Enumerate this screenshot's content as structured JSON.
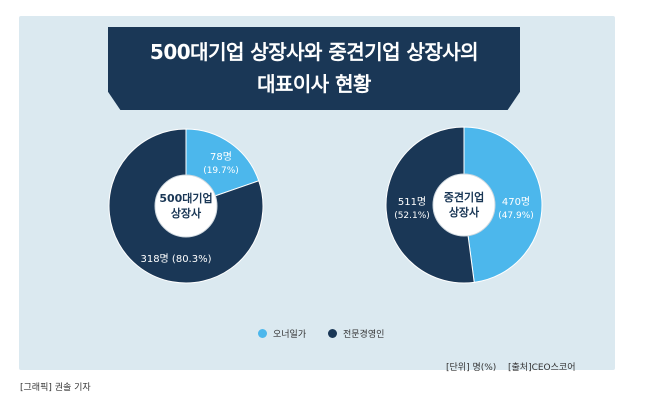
{
  "title_line1": "500대기업 상장사와 중견기업 상장사의",
  "title_line2": "대표이사 현황",
  "colors": {
    "owner": "#4cb7ec",
    "professional": "#1a3756",
    "panel": "#dbe9f0"
  },
  "legend": [
    {
      "label": "오너일가",
      "color": "#4cb7ec"
    },
    {
      "label": "전문경영인",
      "color": "#1a3756"
    }
  ],
  "unit_note": "[단위] 명(%)",
  "source_note": "[출처]CEO스코어",
  "credit": "[그래픽] 권솔 기자",
  "chart_data": [
    {
      "type": "pie",
      "center_label": [
        "500대기업",
        "상장사"
      ],
      "slices": [
        {
          "name": "오너일가",
          "value": 78,
          "percent": 19.7,
          "label": "78명",
          "pct_label": "(19.7%)"
        },
        {
          "name": "전문경영인",
          "value": 318,
          "percent": 80.3,
          "label": "318명",
          "pct_label": "(80.3%)"
        }
      ]
    },
    {
      "type": "pie",
      "center_label": [
        "중견기업",
        "상장사"
      ],
      "slices": [
        {
          "name": "오너일가",
          "value": 470,
          "percent": 47.9,
          "label": "470명",
          "pct_label": "(47.9%)"
        },
        {
          "name": "전문경영인",
          "value": 511,
          "percent": 52.1,
          "label": "511명",
          "pct_label": "(52.1%)"
        }
      ]
    }
  ]
}
